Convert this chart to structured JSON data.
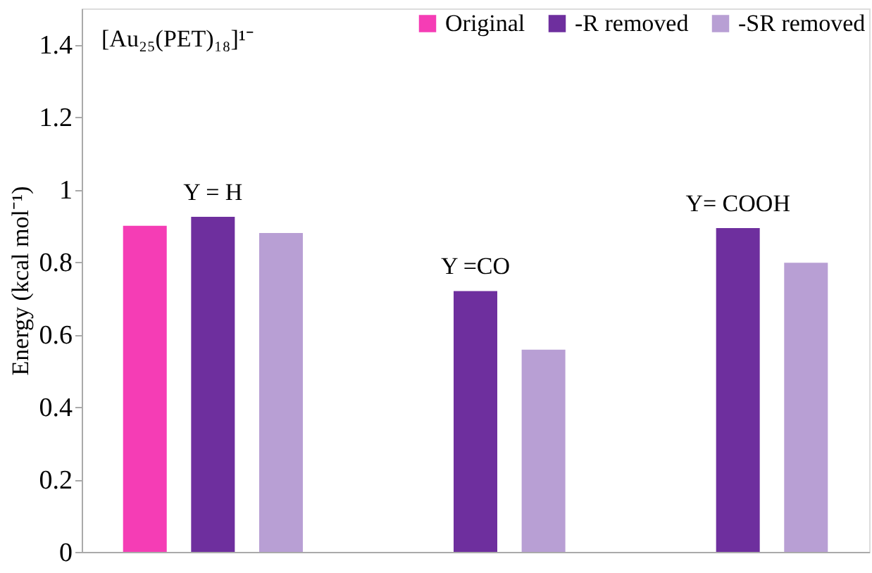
{
  "chart_data": {
    "type": "bar",
    "categories": [
      null,
      null,
      null
    ],
    "series": [
      {
        "name": "Original",
        "color": "#f53db5",
        "values": [
          0.9,
          null,
          null
        ]
      },
      {
        "name": "-R removed",
        "color": "#6e2f9e",
        "values": [
          0.925,
          0.72,
          0.894
        ]
      },
      {
        "name": "-SR removed",
        "color": "#b89fd4",
        "values": [
          0.88,
          0.558,
          0.798
        ]
      }
    ],
    "ylabel": "Energy (kcal mol⁻¹)",
    "annotations": [
      "[Au₂₅(PET)₁₈]¹⁻",
      "Y = H",
      "Y =CO",
      "Y= COOH"
    ],
    "ylim": [
      0,
      1.5
    ],
    "yticks": [
      0,
      0.2,
      0.4,
      0.6,
      0.8,
      1,
      1.2,
      1.4
    ],
    "grid": false,
    "legend": "top right",
    "tick_labels": "y"
  }
}
